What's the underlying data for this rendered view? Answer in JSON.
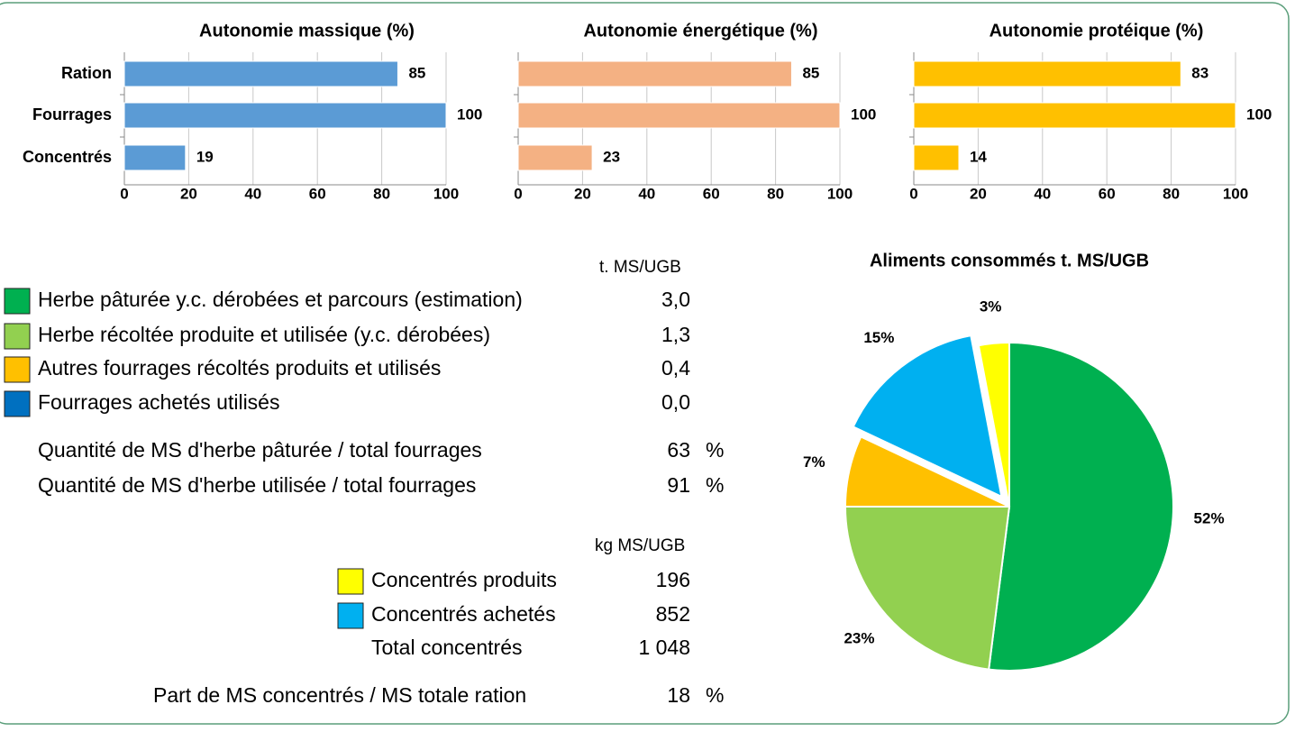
{
  "chart_data": [
    {
      "type": "hbar",
      "title": "Autonomie massique (%)",
      "categories": [
        "Ration",
        "Fourrages",
        "Concentrés"
      ],
      "values": [
        85,
        100,
        19
      ],
      "color": "#5b9bd5",
      "xlim": [
        0,
        100
      ],
      "xticks": [
        0,
        20,
        40,
        60,
        80,
        100
      ],
      "grid": true
    },
    {
      "type": "hbar",
      "title": "Autonomie énergétique (%)",
      "values": [
        85,
        100,
        23
      ],
      "color": "#f4b183",
      "xlim": [
        0,
        100
      ],
      "xticks": [
        0,
        20,
        40,
        60,
        80,
        100
      ],
      "grid": true
    },
    {
      "type": "hbar",
      "title": "Autonomie protéique (%)",
      "values": [
        83,
        100,
        14
      ],
      "color": "#ffc000",
      "xlim": [
        0,
        100
      ],
      "xticks": [
        0,
        20,
        40,
        60,
        80,
        100
      ],
      "grid": true
    },
    {
      "type": "pie",
      "title": "Aliments consommés t. MS/UGB",
      "values": [
        52,
        23,
        7,
        15,
        3
      ],
      "value_labels": [
        "52%",
        "23%",
        "7%",
        "15%",
        "3%"
      ],
      "colors": [
        "#00b050",
        "#92d050",
        "#ffc000",
        "#00b0f0",
        "#ffff00"
      ],
      "exploded": [
        false,
        false,
        false,
        true,
        false
      ]
    }
  ],
  "forages": {
    "unit": "t. MS/UGB",
    "rows": [
      {
        "label": "Herbe pâturée y.c. dérobées et parcours (estimation)",
        "value": "3,0",
        "color": "#00b050"
      },
      {
        "label": "Herbe récoltée produite et utilisée (y.c. dérobées)",
        "value": "1,3",
        "color": "#92d050"
      },
      {
        "label": "Autres fourrages récoltés produits et utilisés",
        "value": "0,4",
        "color": "#ffc000"
      },
      {
        "label": "Fourrages achetés utilisés",
        "value": "0,0",
        "color": "#0070c0"
      }
    ]
  },
  "ratios": [
    {
      "label": "Quantité de MS d'herbe pâturée / total fourrages",
      "value": "63",
      "unit": "%"
    },
    {
      "label": "Quantité de MS d'herbe utilisée / total fourrages",
      "value": "91",
      "unit": "%"
    }
  ],
  "concentrates": {
    "unit": "kg MS/UGB",
    "rows": [
      {
        "label": "Concentrés produits",
        "value": "196",
        "color": "#ffff00"
      },
      {
        "label": "Concentrés achetés",
        "value": "852",
        "color": "#00b0f0"
      }
    ],
    "total": {
      "label": "Total concentrés",
      "value": "1 048"
    }
  },
  "part": {
    "label": "Part de MS concentrés / MS totale ration",
    "value": "18",
    "unit": "%"
  }
}
